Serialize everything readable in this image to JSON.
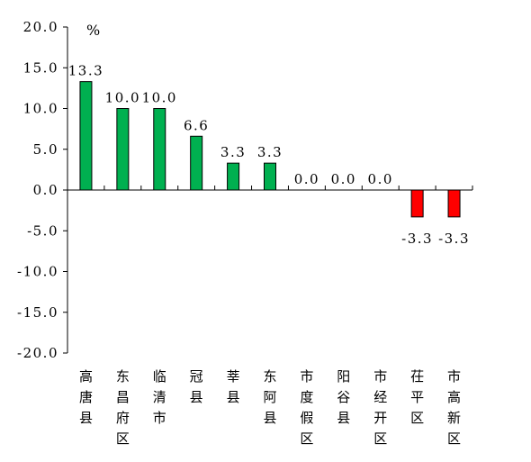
{
  "chart_data": {
    "type": "bar",
    "unit": "%",
    "categories": [
      "高唐县",
      "东昌府区",
      "临清市",
      "冠县",
      "莘县",
      "东阿县",
      "市度假区",
      "阳谷县",
      "市经开区",
      "茌平区",
      "市高新区"
    ],
    "values": [
      13.3,
      10.0,
      10.0,
      6.6,
      3.3,
      3.3,
      0.0,
      0.0,
      0.0,
      -3.3,
      -3.3
    ],
    "data_labels": [
      "13.3",
      "10.0",
      "10.0",
      "6.6",
      "3.3",
      "3.3",
      "0.0",
      "0.0",
      "0.0",
      "-3.3",
      "-3.3"
    ],
    "ylim": [
      -20,
      20
    ],
    "yticks": [
      20,
      15,
      10,
      5,
      0,
      -5,
      -10,
      -15,
      -20
    ],
    "ytick_labels": [
      "20.0",
      "15.0",
      "10.0",
      "5.0",
      "0.0",
      "-5.0",
      "-10.0",
      "-15.0",
      "-20.0"
    ],
    "colors": {
      "positive": "#00b050",
      "negative": "#ff0000",
      "border": "#000000"
    },
    "grid": false,
    "legend": "none"
  }
}
